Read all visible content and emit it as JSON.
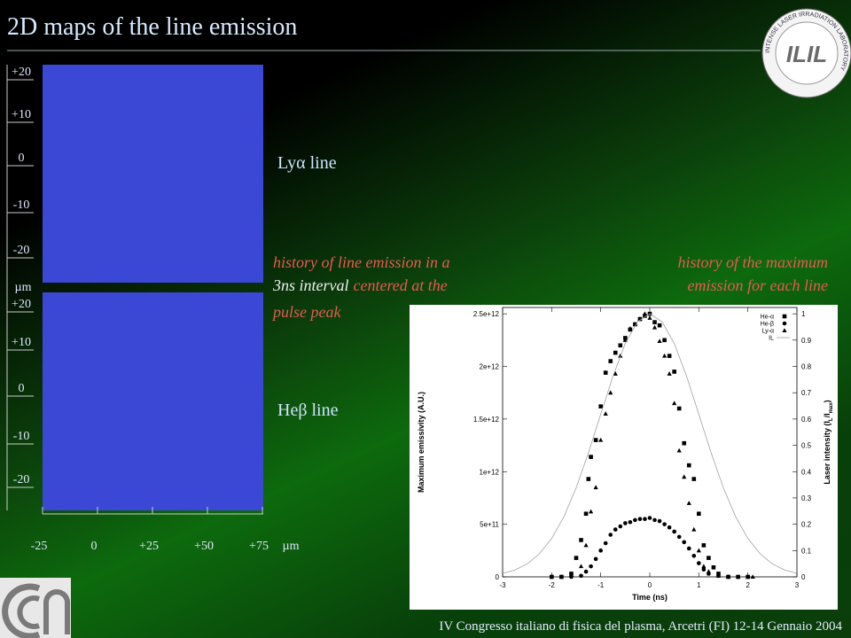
{
  "header": {
    "title": "2D maps of the line emission"
  },
  "logo": {
    "ring": "INTENSE LASER IRRADIATION LABORATORY",
    "mark": "ILIL"
  },
  "maps": {
    "y_labels": [
      "+20",
      "+10",
      "0",
      "-10",
      "-20"
    ],
    "y_unit": "µm",
    "x_labels": [
      "-25",
      "0",
      "+25",
      "+50",
      "+75"
    ],
    "x_unit": "µm",
    "panels": [
      {
        "label": "Lyα line"
      },
      {
        "label": "Heβ line"
      }
    ]
  },
  "notes": {
    "left": [
      [
        "history of line emission in a"
      ],
      [
        "3ns interval",
        "centered at the"
      ],
      [
        "pulse peak"
      ]
    ],
    "right": [
      "history of the maximum",
      "emission for each line"
    ]
  },
  "footer": "IV Congresso italiano di fisica del plasma, Arcetri (FI) 12-14 Gennaio 2004",
  "chart_data": {
    "type": "scatter",
    "x_label": "Time (ns)",
    "y_label": "Maximum emissivity (A.U.)",
    "y2_label": [
      "Laser intensity (I",
      "L",
      "/I",
      "max",
      ")"
    ],
    "xlim": [
      -3,
      3
    ],
    "xticks": [
      -3,
      -2,
      -1,
      0,
      1,
      2,
      3
    ],
    "ylim": [
      0,
      2560000000000.0
    ],
    "yticks": [
      0,
      {
        "value": 500000000000.0,
        "label": "5e+11"
      },
      {
        "value": 1000000000000.0,
        "label": "1e+12"
      },
      {
        "value": 1500000000000.0,
        "label": "1.5e+12"
      },
      {
        "value": 2000000000000.0,
        "label": "2e+12"
      },
      {
        "value": 2500000000000.0,
        "label": "2.5e+12"
      }
    ],
    "y2lim": [
      0,
      1.024
    ],
    "y2ticks": [
      0,
      0.1,
      0.2,
      0.3,
      0.4,
      0.5,
      0.6,
      0.7,
      0.8,
      0.9,
      1
    ],
    "grid": false,
    "legend": "top-right",
    "series": [
      {
        "name": "He-α",
        "color": "#000000",
        "marker": "square",
        "x": [
          -2,
          -1.8,
          -1.6,
          -1.5,
          -1.4,
          -1.3,
          -1.25,
          -1.2,
          -1.1,
          -1.0,
          -0.9,
          -0.8,
          -0.7,
          -0.6,
          -0.5,
          -0.4,
          -0.3,
          -0.2,
          -0.1,
          0,
          0.1,
          0.2,
          0.3,
          0.4,
          0.5,
          0.6,
          0.7,
          0.8,
          0.9,
          1.0,
          1.1,
          1.2,
          1.3,
          1.4,
          1.6,
          1.8,
          2
        ],
        "values": [
          0,
          0,
          30000000000.0,
          180000000000.0,
          350000000000.0,
          600000000000.0,
          930000000000.0,
          1140000000000.0,
          1300000000000.0,
          1620000000000.0,
          1940000000000.0,
          2050000000000.0,
          2130000000000.0,
          2200000000000.0,
          2270000000000.0,
          2350000000000.0,
          2400000000000.0,
          2450000000000.0,
          2480000000000.0,
          2500000000000.0,
          2420000000000.0,
          2390000000000.0,
          2250000000000.0,
          2100000000000.0,
          1950000000000.0,
          1600000000000.0,
          1270000000000.0,
          1060000000000.0,
          930000000000.0,
          600000000000.0,
          300000000000.0,
          180000000000.0,
          90000000000.0,
          30000000000.0,
          0,
          0,
          0
        ]
      },
      {
        "name": "He-β",
        "color": "#000000",
        "marker": "circle",
        "x": [
          -2,
          -1.8,
          -1.6,
          -1.4,
          -1.3,
          -1.2,
          -1.1,
          -1.0,
          -0.9,
          -0.8,
          -0.7,
          -0.6,
          -0.5,
          -0.4,
          -0.3,
          -0.2,
          -0.1,
          0,
          0.1,
          0.2,
          0.3,
          0.4,
          0.5,
          0.6,
          0.7,
          0.8,
          0.9,
          1.0,
          1.1,
          1.2,
          1.4,
          1.6,
          1.8,
          2
        ],
        "values": [
          0,
          0,
          0,
          10000000000.0,
          50000000000.0,
          100000000000.0,
          170000000000.0,
          250000000000.0,
          320000000000.0,
          400000000000.0,
          450000000000.0,
          480000000000.0,
          510000000000.0,
          520000000000.0,
          540000000000.0,
          550000000000.0,
          550000000000.0,
          560000000000.0,
          540000000000.0,
          530000000000.0,
          500000000000.0,
          470000000000.0,
          430000000000.0,
          380000000000.0,
          330000000000.0,
          270000000000.0,
          200000000000.0,
          130000000000.0,
          70000000000.0,
          30000000000.0,
          10000000000.0,
          0,
          0,
          0
        ]
      },
      {
        "name": "Ly-α",
        "color": "#000000",
        "marker": "triangle",
        "x": [
          -1.8,
          -1.6,
          -1.4,
          -1.3,
          -1.2,
          -1.1,
          -1.0,
          -0.9,
          -0.8,
          -0.7,
          -0.6,
          -0.5,
          -0.4,
          -0.3,
          -0.2,
          -0.1,
          0,
          0.1,
          0.2,
          0.3,
          0.4,
          0.5,
          0.6,
          0.7,
          0.8,
          0.9,
          1.0,
          1.1,
          1.2,
          1.4,
          1.6,
          2.1
        ],
        "values": [
          0,
          20000000000.0,
          100000000000.0,
          300000000000.0,
          620000000000.0,
          850000000000.0,
          1300000000000.0,
          1550000000000.0,
          1750000000000.0,
          1930000000000.0,
          2100000000000.0,
          2250000000000.0,
          2360000000000.0,
          2400000000000.0,
          2450000000000.0,
          2500000000000.0,
          2460000000000.0,
          2370000000000.0,
          2240000000000.0,
          2100000000000.0,
          1930000000000.0,
          1650000000000.0,
          1200000000000.0,
          950000000000.0,
          700000000000.0,
          450000000000.0,
          250000000000.0,
          100000000000.0,
          50000000000.0,
          10000000000.0,
          0,
          0
        ]
      },
      {
        "name": "IL",
        "color": "#a0a0a0",
        "marker": "line",
        "axis": "y2",
        "x": [
          -3,
          -2.75,
          -2.5,
          -2.25,
          -2,
          -1.75,
          -1.5,
          -1.25,
          -1,
          -0.75,
          -0.5,
          -0.25,
          0,
          0.25,
          0.5,
          0.75,
          1,
          1.25,
          1.5,
          1.75,
          2,
          2.25,
          2.5,
          2.75,
          3
        ],
        "values": [
          0.013,
          0.026,
          0.049,
          0.088,
          0.146,
          0.229,
          0.339,
          0.472,
          0.618,
          0.763,
          0.887,
          0.97,
          1,
          0.97,
          0.887,
          0.763,
          0.618,
          0.472,
          0.339,
          0.229,
          0.146,
          0.088,
          0.049,
          0.026,
          0.013
        ]
      }
    ]
  }
}
